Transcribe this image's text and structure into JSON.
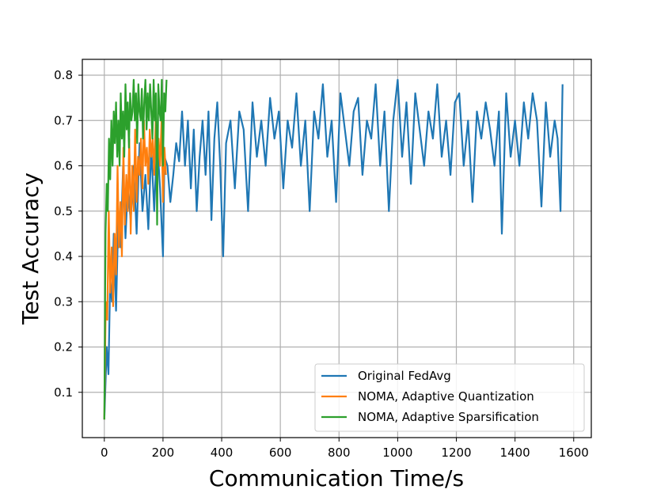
{
  "chart_data": {
    "type": "line",
    "xlabel": "Communication Time/s",
    "ylabel": "Test Accuracy",
    "xlim": [
      -75,
      1660
    ],
    "ylim": [
      0,
      0.835
    ],
    "xticks": [
      0,
      200,
      400,
      600,
      800,
      1000,
      1200,
      1400,
      1600
    ],
    "xtick_labels": [
      "0",
      "200",
      "400",
      "600",
      "800",
      "1000",
      "1200",
      "1400",
      "1600"
    ],
    "yticks": [
      0.1,
      0.2,
      0.3,
      0.4,
      0.5,
      0.6,
      0.7,
      0.8
    ],
    "ytick_labels": [
      "0.1",
      "0.2",
      "0.3",
      "0.4",
      "0.5",
      "0.6",
      "0.7",
      "0.8"
    ],
    "grid": true,
    "legend_position": "lower-right",
    "series": [
      {
        "name": "Original FedAvg",
        "color": "#1f77b4",
        "x": [
          0,
          8,
          14,
          20,
          26,
          32,
          40,
          48,
          56,
          64,
          72,
          80,
          90,
          100,
          110,
          120,
          130,
          140,
          150,
          160,
          170,
          180,
          190,
          200,
          205,
          215,
          225,
          235,
          245,
          255,
          265,
          275,
          285,
          295,
          305,
          315,
          325,
          335,
          345,
          355,
          365,
          375,
          385,
          395,
          405,
          415,
          430,
          445,
          460,
          475,
          490,
          505,
          520,
          535,
          550,
          565,
          580,
          595,
          610,
          625,
          640,
          655,
          670,
          685,
          700,
          715,
          730,
          745,
          760,
          775,
          790,
          805,
          820,
          835,
          850,
          865,
          880,
          895,
          910,
          925,
          940,
          955,
          970,
          985,
          1000,
          1015,
          1030,
          1045,
          1060,
          1075,
          1090,
          1105,
          1120,
          1135,
          1150,
          1165,
          1180,
          1195,
          1210,
          1225,
          1240,
          1255,
          1270,
          1285,
          1300,
          1315,
          1330,
          1345,
          1355,
          1370,
          1385,
          1400,
          1415,
          1430,
          1445,
          1460,
          1475,
          1490,
          1505,
          1520,
          1535,
          1545,
          1555,
          1562
        ],
        "y": [
          0.04,
          0.2,
          0.14,
          0.35,
          0.3,
          0.45,
          0.28,
          0.5,
          0.42,
          0.6,
          0.44,
          0.55,
          0.48,
          0.6,
          0.45,
          0.65,
          0.5,
          0.58,
          0.46,
          0.64,
          0.5,
          0.66,
          0.55,
          0.4,
          0.62,
          0.6,
          0.52,
          0.58,
          0.65,
          0.61,
          0.72,
          0.6,
          0.7,
          0.55,
          0.68,
          0.5,
          0.62,
          0.7,
          0.58,
          0.72,
          0.48,
          0.66,
          0.74,
          0.6,
          0.4,
          0.65,
          0.7,
          0.55,
          0.72,
          0.68,
          0.5,
          0.74,
          0.62,
          0.7,
          0.6,
          0.75,
          0.66,
          0.72,
          0.55,
          0.7,
          0.64,
          0.76,
          0.6,
          0.7,
          0.5,
          0.72,
          0.66,
          0.78,
          0.62,
          0.7,
          0.52,
          0.76,
          0.68,
          0.6,
          0.72,
          0.75,
          0.58,
          0.7,
          0.66,
          0.78,
          0.6,
          0.72,
          0.5,
          0.7,
          0.79,
          0.62,
          0.74,
          0.56,
          0.76,
          0.68,
          0.6,
          0.72,
          0.66,
          0.78,
          0.62,
          0.7,
          0.58,
          0.74,
          0.76,
          0.6,
          0.7,
          0.52,
          0.72,
          0.66,
          0.74,
          0.68,
          0.6,
          0.72,
          0.45,
          0.76,
          0.62,
          0.7,
          0.6,
          0.74,
          0.66,
          0.76,
          0.7,
          0.51,
          0.74,
          0.62,
          0.7,
          0.66,
          0.5,
          0.78
        ]
      },
      {
        "name": "NOMA, Adaptive Quantization",
        "color": "#ff7f0e",
        "x": [
          0,
          5,
          10,
          15,
          20,
          25,
          30,
          35,
          40,
          45,
          50,
          55,
          60,
          65,
          70,
          75,
          80,
          85,
          90,
          95,
          100,
          105,
          110,
          115,
          120,
          125,
          130,
          135,
          140,
          145,
          150,
          155,
          160,
          165,
          170,
          175,
          180,
          185,
          190,
          195,
          200,
          205,
          210
        ],
        "y": [
          0.04,
          0.3,
          0.26,
          0.5,
          0.32,
          0.42,
          0.29,
          0.45,
          0.36,
          0.6,
          0.42,
          0.52,
          0.4,
          0.64,
          0.47,
          0.58,
          0.5,
          0.66,
          0.45,
          0.6,
          0.5,
          0.68,
          0.52,
          0.62,
          0.58,
          0.66,
          0.55,
          0.7,
          0.6,
          0.64,
          0.56,
          0.68,
          0.62,
          0.66,
          0.58,
          0.7,
          0.62,
          0.66,
          0.6,
          0.7,
          0.52,
          0.64,
          0.58
        ]
      },
      {
        "name": "NOMA, Adaptive Sparsification",
        "color": "#2ca02c",
        "x": [
          0,
          4,
          8,
          12,
          16,
          20,
          24,
          28,
          32,
          36,
          40,
          44,
          48,
          52,
          56,
          60,
          64,
          68,
          72,
          76,
          80,
          84,
          88,
          92,
          96,
          100,
          104,
          108,
          112,
          116,
          120,
          124,
          128,
          132,
          136,
          140,
          144,
          148,
          152,
          156,
          160,
          164,
          168,
          172,
          176,
          180,
          184,
          188,
          192,
          196,
          200,
          204,
          208,
          212
        ],
        "y": [
          0.04,
          0.45,
          0.56,
          0.5,
          0.66,
          0.57,
          0.7,
          0.6,
          0.72,
          0.65,
          0.74,
          0.62,
          0.7,
          0.6,
          0.76,
          0.66,
          0.72,
          0.62,
          0.78,
          0.68,
          0.74,
          0.64,
          0.76,
          0.7,
          0.72,
          0.79,
          0.7,
          0.76,
          0.65,
          0.78,
          0.72,
          0.7,
          0.77,
          0.66,
          0.74,
          0.79,
          0.68,
          0.76,
          0.7,
          0.78,
          0.72,
          0.66,
          0.79,
          0.7,
          0.76,
          0.47,
          0.78,
          0.72,
          0.7,
          0.79,
          0.6,
          0.76,
          0.72,
          0.79
        ]
      }
    ]
  }
}
